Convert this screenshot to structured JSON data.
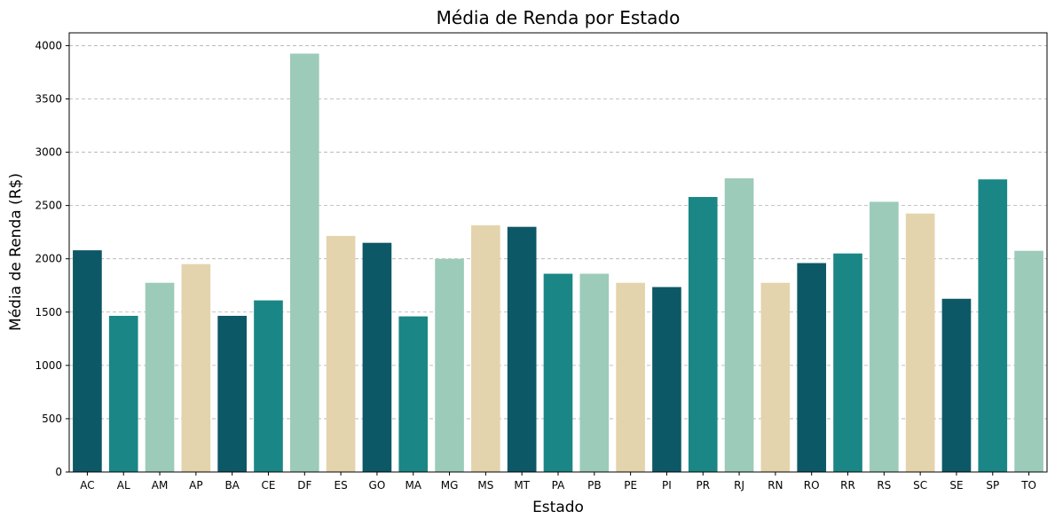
{
  "chart_data": {
    "type": "bar",
    "title": "Média de Renda por Estado",
    "xlabel": "Estado",
    "ylabel": "Média de Renda (R$)",
    "ylim": [
      0,
      4120
    ],
    "yticks": [
      0,
      500,
      1000,
      1500,
      2000,
      2500,
      3000,
      3500,
      4000
    ],
    "grid": "y-dashed",
    "categories": [
      "AC",
      "AL",
      "AM",
      "AP",
      "BA",
      "CE",
      "DF",
      "ES",
      "GO",
      "MA",
      "MG",
      "MS",
      "MT",
      "PA",
      "PB",
      "PE",
      "PI",
      "PR",
      "RJ",
      "RN",
      "RO",
      "RR",
      "RS",
      "SC",
      "SE",
      "SP",
      "TO"
    ],
    "values": [
      2080,
      1465,
      1775,
      1950,
      1465,
      1610,
      3925,
      2215,
      2150,
      1460,
      2000,
      2315,
      2300,
      1860,
      1860,
      1775,
      1735,
      2580,
      2755,
      1775,
      1960,
      2050,
      2535,
      2425,
      1625,
      2745,
      2075
    ],
    "palette": [
      "#0d5866",
      "#1b8686",
      "#9ccbb9",
      "#e3d4ad"
    ]
  }
}
